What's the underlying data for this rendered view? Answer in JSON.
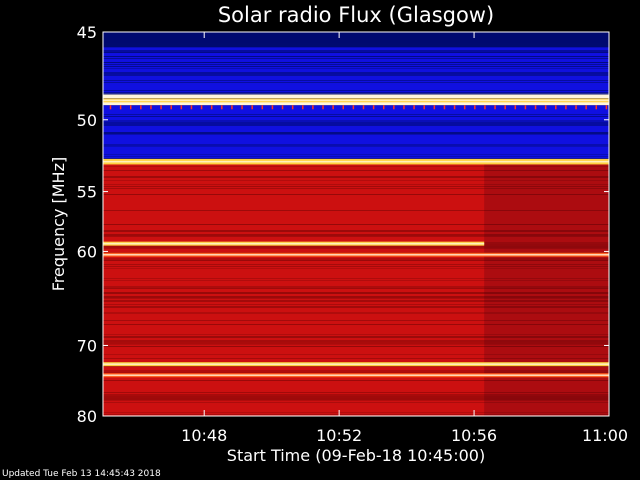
{
  "chart_data": {
    "type": "heatmap",
    "title": "Solar radio Flux (Glasgow)",
    "xlabel": "Start Time (09-Feb-18 10:45:00)",
    "ylabel": "Frequency [MHz]",
    "x_ticks": [
      "10:48",
      "10:52",
      "10:56",
      "11:00"
    ],
    "x_tick_minutes": [
      3,
      7,
      11,
      15
    ],
    "x_range_minutes": [
      0,
      15
    ],
    "y_ticks": [
      45,
      50,
      55,
      60,
      70,
      80
    ],
    "y_range_mhz": [
      45,
      80
    ],
    "y_scale": "reciprocal",
    "colormap": "black-blue-red-yellow-white",
    "bands": [
      {
        "from_mhz": 45.0,
        "to_mhz": 48.4,
        "level": "blue"
      },
      {
        "from_mhz": 48.4,
        "to_mhz": 49.1,
        "level": "white"
      },
      {
        "from_mhz": 49.1,
        "to_mhz": 52.6,
        "level": "blue"
      },
      {
        "from_mhz": 52.6,
        "to_mhz": 53.0,
        "level": "yellow"
      },
      {
        "from_mhz": 53.0,
        "to_mhz": 80.0,
        "level": "red"
      }
    ],
    "bright_lines_mhz": [
      48.8,
      52.8,
      59.3,
      60.3,
      72.4,
      73.9
    ]
  },
  "footer": {
    "updated": "Updated Tue Feb 13 14:45:43 2018"
  },
  "colors": {
    "background": "#000000",
    "blue": "#1010e0",
    "dark_blue": "#000a70",
    "red": "#cc1010",
    "dark_red": "#8a0808",
    "yellow": "#ffd040",
    "white": "#fff6dc"
  }
}
